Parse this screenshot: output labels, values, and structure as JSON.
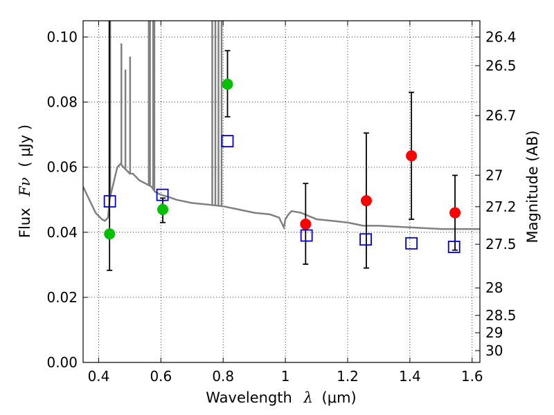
{
  "chart_data": {
    "type": "scatter",
    "xlabel": "Wavelength",
    "xlabel_symbol": "λ",
    "xlabel_unit": "(μm)",
    "ylabel": "Flux",
    "ylabel_symbol": "Fν",
    "ylabel_unit": "( μJy )",
    "y2label": "Magnitude (AB)",
    "xlim": [
      0.35,
      1.625
    ],
    "ylim": [
      0.0,
      0.105
    ],
    "x_ticks": [
      "0.4",
      "0.6",
      "0.8",
      "1",
      "1.2",
      "1.4",
      "1.6"
    ],
    "x_tick_values": [
      0.4,
      0.6,
      0.8,
      1.0,
      1.2,
      1.4,
      1.6
    ],
    "y_ticks": [
      "0.00",
      "0.02",
      "0.04",
      "0.06",
      "0.08",
      "0.10"
    ],
    "y_tick_values": [
      0.0,
      0.02,
      0.04,
      0.06,
      0.08,
      0.1
    ],
    "y2_ticks": [
      {
        "label": "26.4",
        "mag": 26.4
      },
      {
        "label": "26.5",
        "mag": 26.5
      },
      {
        "label": "26.7",
        "mag": 26.7
      },
      {
        "label": "27",
        "mag": 27.0
      },
      {
        "label": "27.2",
        "mag": 27.2
      },
      {
        "label": "27.5",
        "mag": 27.5
      },
      {
        "label": "28",
        "mag": 28.0
      },
      {
        "label": "28.5",
        "mag": 28.5
      },
      {
        "label": "29",
        "mag": 29.0
      },
      {
        "label": "30",
        "mag": 30.0
      }
    ],
    "grid": "dotted",
    "colors": {
      "green": "#00c000",
      "red": "#ff0000",
      "blue": "#0000cc",
      "model": "#808080",
      "errorbar": "#000000"
    },
    "series": [
      {
        "kind": "green-circles",
        "points": [
          {
            "x": 0.435,
            "y": 0.0395,
            "lo": 0.0283,
            "hi": null
          },
          {
            "x": 0.606,
            "y": 0.047,
            "lo": 0.043,
            "hi": 0.0505
          },
          {
            "x": 0.814,
            "y": 0.0855,
            "lo": 0.0755,
            "hi": 0.0958
          }
        ]
      },
      {
        "kind": "red-circles",
        "points": [
          {
            "x": 1.065,
            "y": 0.0425,
            "lo": 0.0302,
            "hi": 0.055
          },
          {
            "x": 1.26,
            "y": 0.0497,
            "lo": 0.029,
            "hi": 0.0705
          },
          {
            "x": 1.405,
            "y": 0.0635,
            "lo": 0.044,
            "hi": 0.083
          },
          {
            "x": 1.545,
            "y": 0.046,
            "lo": 0.0345,
            "hi": 0.0575
          }
        ]
      },
      {
        "kind": "blue-open-squares",
        "points": [
          {
            "x": 0.436,
            "y": 0.0495
          },
          {
            "x": 0.605,
            "y": 0.0515
          },
          {
            "x": 0.814,
            "y": 0.068
          },
          {
            "x": 1.068,
            "y": 0.039
          },
          {
            "x": 1.258,
            "y": 0.0378
          },
          {
            "x": 1.405,
            "y": 0.0366
          },
          {
            "x": 1.542,
            "y": 0.0355
          }
        ]
      }
    ],
    "model_spectrum": {
      "x": [
        0.35,
        0.36,
        0.37,
        0.38,
        0.39,
        0.4,
        0.41,
        0.42,
        0.43,
        0.435,
        0.44,
        0.45,
        0.46,
        0.47,
        0.48,
        0.49,
        0.5,
        0.51,
        0.52,
        0.53,
        0.54,
        0.55,
        0.56,
        0.57,
        0.58,
        0.6,
        0.62,
        0.65,
        0.7,
        0.75,
        0.8,
        0.85,
        0.9,
        0.95,
        0.98,
        0.995,
        1.0,
        1.01,
        1.02,
        1.05,
        1.1,
        1.15,
        1.2,
        1.25,
        1.3,
        1.4,
        1.5,
        1.6,
        1.625
      ],
      "y": [
        0.054,
        0.052,
        0.05,
        0.048,
        0.046,
        0.045,
        0.044,
        0.0435,
        0.0445,
        0.05,
        0.052,
        0.056,
        0.06,
        0.061,
        0.06,
        0.059,
        0.058,
        0.058,
        0.057,
        0.056,
        0.0555,
        0.055,
        0.0545,
        0.054,
        0.0525,
        0.0515,
        0.051,
        0.05,
        0.049,
        0.0485,
        0.048,
        0.047,
        0.046,
        0.0455,
        0.0445,
        0.0415,
        0.044,
        0.0455,
        0.0465,
        0.046,
        0.044,
        0.0435,
        0.043,
        0.042,
        0.042,
        0.0415,
        0.041,
        0.041,
        0.041
      ]
    },
    "emission_lines": [
      {
        "x": 0.434,
        "peak": 0.105
      },
      {
        "x": 0.437,
        "peak": 0.105
      },
      {
        "x": 0.473,
        "peak": 0.098
      },
      {
        "x": 0.486,
        "peak": 0.09
      },
      {
        "x": 0.501,
        "peak": 0.094
      },
      {
        "x": 0.561,
        "peak": 0.105
      },
      {
        "x": 0.565,
        "peak": 0.105
      },
      {
        "x": 0.575,
        "peak": 0.105
      },
      {
        "x": 0.579,
        "peak": 0.105
      },
      {
        "x": 0.765,
        "peak": 0.105
      },
      {
        "x": 0.775,
        "peak": 0.105
      },
      {
        "x": 0.785,
        "peak": 0.105
      },
      {
        "x": 0.795,
        "peak": 0.105
      }
    ]
  }
}
